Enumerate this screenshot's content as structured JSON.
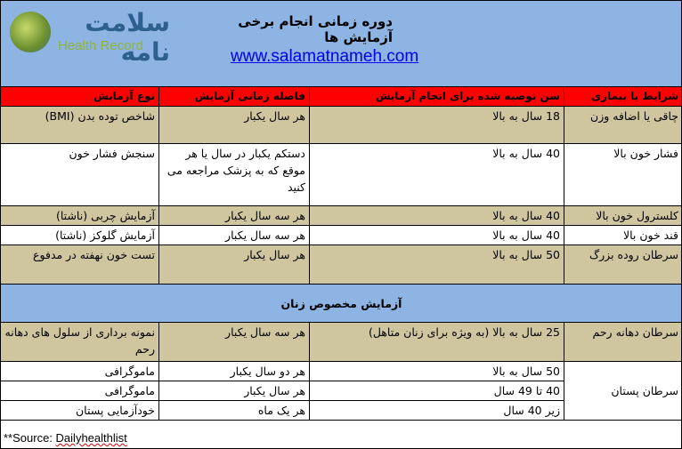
{
  "header": {
    "logo_fa": "سلامت نامه",
    "logo_en": "Health Record",
    "title": "دوره زمانی انجام برخی آزمایش ها",
    "url": "www.salamatnameh.com"
  },
  "columns": [
    "شرایط یا بیماری",
    "سن توصیه شده برای انجام آزمایش",
    "فاصله زمانی آزمایش",
    "نوع آزمایش"
  ],
  "rows": [
    {
      "condition": "چاقی یا اضافه وزن",
      "age": "18 سال به بالا",
      "interval": "هر سال یکبار",
      "test": "شاخص توده بدن (BMI)"
    },
    {
      "condition": "فشار خون بالا",
      "age": "40 سال به بالا",
      "interval": "دستکم یکبار در سال یا هر موقع که به پزشک مراجعه می کنید",
      "test": "سنجش فشار خون"
    },
    {
      "condition": "کلسترول خون بالا",
      "age": "40 سال به بالا",
      "interval": "هر سه سال یکبار",
      "test": "آزمایش چربی (ناشتا)"
    },
    {
      "condition": "قند خون بالا",
      "age": "40 سال به بالا",
      "interval": "هر سه سال یکبار",
      "test": "آزمایش گلوکز (ناشتا)"
    },
    {
      "condition": "سرطان روده بزرگ",
      "age": "50 سال به بالا",
      "interval": "هر سال یکبار",
      "test": "تست خون نهفته در مدفوع"
    }
  ],
  "women_section": "آزمایش مخصوص زنان",
  "cervical": {
    "condition": "سرطان دهانه رحم",
    "age": "25 سال به بالا (به ویژه برای زنان متاهل)",
    "interval": "هر سه سال یکبار",
    "test": "نمونه برداری از سلول های دهانه رحم"
  },
  "breast": {
    "condition": "سرطان پستان",
    "rows": [
      {
        "age": "50 سال به بالا",
        "interval": "هر دو سال یکبار",
        "test": "ماموگرافی"
      },
      {
        "age": "40 تا 49 سال",
        "interval": "هر سال یکبار",
        "test": "ماموگرافی"
      },
      {
        "age": "زیر 40 سال",
        "interval": "هر یک ماه",
        "test": "خودآزمایی پستان"
      }
    ]
  },
  "source": {
    "prefix": "**Source: ",
    "name": "Dailyhealthlist"
  },
  "colors": {
    "header_blue": "#8db4e2",
    "header_red": "#ff0000",
    "tan": "#cfc59f"
  }
}
